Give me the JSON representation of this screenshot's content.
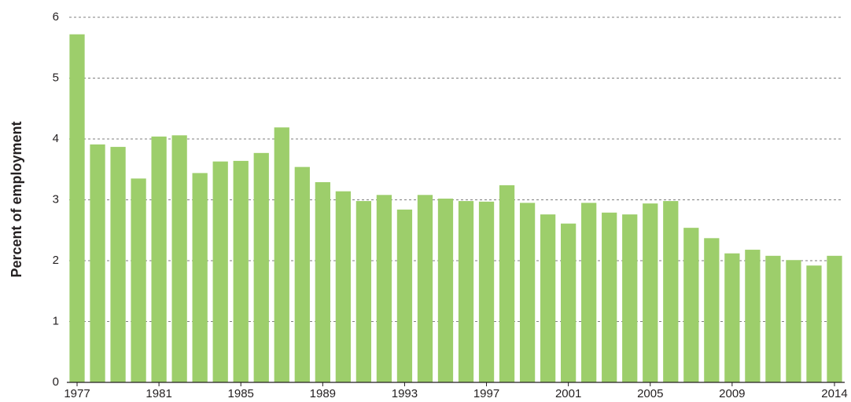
{
  "chart_data": {
    "type": "bar",
    "y_label": "Percent of employment",
    "categories": [
      "1977",
      null,
      null,
      null,
      "1981",
      null,
      null,
      null,
      "1985",
      null,
      null,
      null,
      "1989",
      null,
      null,
      null,
      "1993",
      null,
      null,
      null,
      "1997",
      null,
      null,
      null,
      "2001",
      null,
      null,
      null,
      "2005",
      null,
      null,
      null,
      "2009",
      null,
      null,
      null,
      null,
      "2014"
    ],
    "values": [
      5.72,
      3.91,
      3.87,
      3.35,
      4.04,
      4.06,
      3.44,
      3.63,
      3.64,
      3.77,
      4.19,
      3.54,
      3.29,
      3.14,
      2.98,
      3.08,
      2.84,
      3.08,
      3.02,
      2.98,
      2.97,
      3.24,
      2.95,
      2.76,
      2.61,
      2.95,
      2.79,
      2.76,
      2.94,
      2.98,
      2.54,
      2.37,
      2.12,
      2.18,
      2.08,
      2.01,
      1.92,
      2.08
    ],
    "color": "#9dce6b",
    "ylim": [
      0,
      6
    ],
    "yticks": [
      0,
      1,
      2,
      3,
      4,
      5,
      6
    ],
    "grid": true
  }
}
